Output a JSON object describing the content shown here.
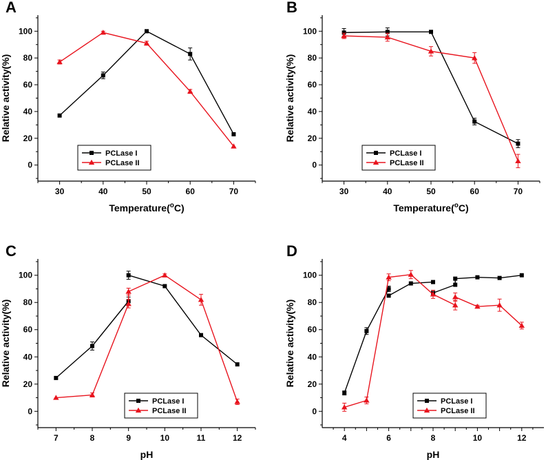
{
  "chart_data": [
    {
      "panel": "A",
      "type": "line",
      "xlabel": "Temperature(°C)",
      "xlabel_parts": [
        "Temperature(",
        "o",
        "C)"
      ],
      "ylabel": "Relative activity(%)",
      "xlim": [
        25,
        75
      ],
      "ylim": [
        -12,
        112
      ],
      "xticks": [
        30,
        40,
        50,
        60,
        70
      ],
      "yticks": [
        0,
        20,
        40,
        60,
        80,
        100
      ],
      "legend_position": "bottom-left",
      "series": [
        {
          "name": "PCLase I",
          "color": "#000000",
          "marker": "square",
          "x": [
            30,
            40,
            50,
            60,
            70
          ],
          "values": [
            37,
            67,
            100,
            83,
            23
          ],
          "err": [
            0,
            2.5,
            0,
            4.5,
            0
          ]
        },
        {
          "name": "PCLase II",
          "color": "#e8141e",
          "marker": "triangle",
          "x": [
            30,
            40,
            50,
            60,
            70
          ],
          "values": [
            77,
            99,
            91,
            55,
            14
          ],
          "err": [
            1.5,
            1,
            1.5,
            1.5,
            0
          ]
        }
      ]
    },
    {
      "panel": "B",
      "type": "line",
      "xlabel": "Temperature(°C)",
      "xlabel_parts": [
        "Temperature(",
        "o",
        "C)"
      ],
      "ylabel": "Relative activity(%)",
      "xlim": [
        25,
        75
      ],
      "ylim": [
        -12,
        112
      ],
      "xticks": [
        30,
        40,
        50,
        60,
        70
      ],
      "yticks": [
        0,
        20,
        40,
        60,
        80,
        100
      ],
      "legend_position": "bottom-left",
      "series": [
        {
          "name": "PCLase I",
          "color": "#000000",
          "marker": "square",
          "x": [
            30,
            40,
            50,
            60,
            70
          ],
          "values": [
            99,
            99.5,
            99.5,
            32.5,
            16
          ],
          "err": [
            3,
            3,
            0,
            2.5,
            3
          ]
        },
        {
          "name": "PCLase II",
          "color": "#e8141e",
          "marker": "triangle",
          "x": [
            30,
            40,
            50,
            60,
            70
          ],
          "values": [
            96.5,
            95.5,
            85,
            80,
            3
          ],
          "err": [
            2,
            3,
            3.5,
            4,
            5
          ]
        }
      ]
    },
    {
      "panel": "C",
      "type": "line",
      "xlabel": "pH",
      "xlabel_parts": [
        "pH",
        "",
        ""
      ],
      "ylabel": "Relative activity(%)",
      "xlim": [
        6.5,
        12.5
      ],
      "ylim": [
        -12,
        112
      ],
      "xticks": [
        7,
        8,
        9,
        10,
        11,
        12
      ],
      "yticks": [
        0,
        20,
        40,
        60,
        80,
        100
      ],
      "legend_position": "bottom-right",
      "series": [
        {
          "name": "PCLase I",
          "color": "#000000",
          "marker": "square",
          "x": [
            7,
            8,
            9,
            9,
            10,
            11,
            12
          ],
          "values": [
            24.5,
            48,
            81,
            100,
            92,
            56,
            34.5
          ],
          "err": [
            0,
            3,
            3,
            3,
            0,
            0,
            0
          ],
          "segments": [
            [
              0,
              2
            ],
            [
              3,
              6
            ]
          ]
        },
        {
          "name": "PCLase II",
          "color": "#e8141e",
          "marker": "triangle",
          "x": [
            7,
            8,
            9,
            9,
            10,
            11,
            12
          ],
          "values": [
            10,
            12,
            79,
            88,
            100,
            82,
            7
          ],
          "err": [
            0,
            1.5,
            3,
            2.5,
            1,
            4,
            2
          ],
          "segments": [
            [
              0,
              1
            ],
            [
              1,
              6
            ]
          ]
        }
      ]
    },
    {
      "panel": "D",
      "type": "line",
      "xlabel": "pH",
      "xlabel_parts": [
        "pH",
        "",
        ""
      ],
      "ylabel": "Relative activity(%)",
      "xlim": [
        3,
        13
      ],
      "ylim": [
        -12,
        112
      ],
      "xticks": [
        4,
        5,
        6,
        7,
        8,
        9,
        10,
        11,
        12
      ],
      "xtick_labels": [
        "4",
        "",
        "6",
        "",
        "8",
        "",
        "10",
        "",
        "12"
      ],
      "yticks": [
        0,
        20,
        40,
        60,
        80,
        100
      ],
      "legend_position": "bottom-right",
      "series": [
        {
          "name": "PCLase I",
          "color": "#000000",
          "marker": "square",
          "x": [
            4,
            5,
            6,
            6,
            7,
            8,
            8,
            9,
            9,
            10,
            11,
            12
          ],
          "values": [
            13.5,
            59,
            90,
            85,
            94,
            95,
            87,
            93,
            97.5,
            98.5,
            98,
            100
          ],
          "err": [
            1.5,
            2.5,
            2,
            0,
            0,
            0,
            0,
            0,
            0,
            0,
            0,
            0
          ],
          "segments": [
            [
              0,
              2
            ],
            [
              3,
              5
            ],
            [
              6,
              8
            ],
            [
              8,
              11
            ]
          ]
        },
        {
          "name": "PCLase II",
          "color": "#e8141e",
          "marker": "triangle",
          "x": [
            4,
            5,
            6,
            7,
            8,
            9,
            9,
            10,
            11,
            12
          ],
          "values": [
            3,
            8,
            98.5,
            100.5,
            86,
            78,
            84,
            77,
            78,
            63
          ],
          "err": [
            3,
            2.5,
            2.5,
            3,
            3,
            3.5,
            3,
            1,
            4.5,
            2.5
          ],
          "segments": [
            [
              0,
              5
            ],
            [
              6,
              9
            ]
          ]
        }
      ]
    }
  ]
}
